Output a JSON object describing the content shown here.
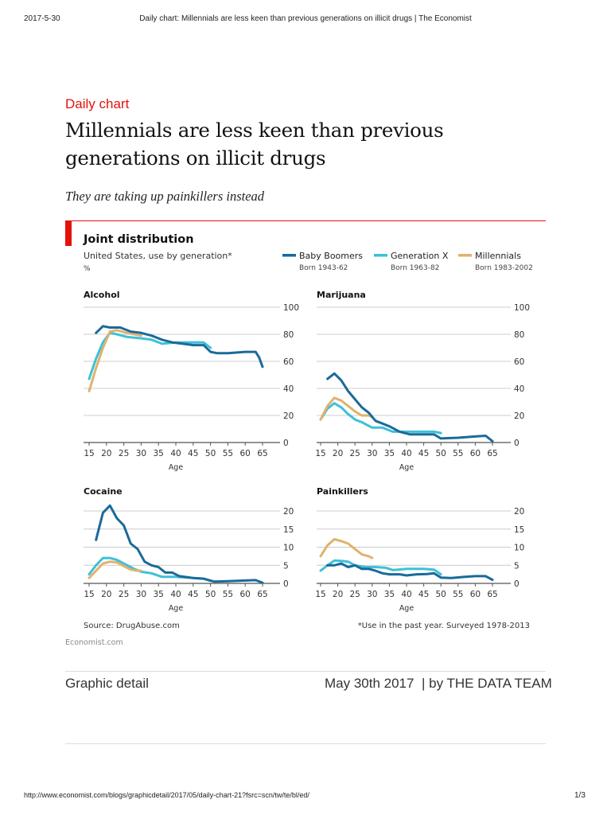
{
  "browser": {
    "date": "2017-5-30",
    "page_title": "Daily chart: Millennials are less keen than previous generations on illicit drugs | The Economist",
    "url": "http://www.economist.com/blogs/graphicdetail/2017/05/daily-chart-21?fsrc=scn/tw/te/bl/ed/",
    "page_number": "1/3"
  },
  "article": {
    "kicker": "Daily chart",
    "title": "Millennials are less keen than previous generations on illicit drugs",
    "subtitle": "They are taking up painkillers instead",
    "section": "Graphic detail",
    "date": "May 30th 2017",
    "byline": "| by THE DATA TEAM"
  },
  "figure": {
    "title": "Joint distribution",
    "subtitle": "United States, use by generation*",
    "unit": "%",
    "source": "Source: DrugAbuse.com",
    "note": "*Use in the past year. Surveyed 1978-2013",
    "brand": "Economist.com",
    "accent": "#e3120b",
    "legend": [
      {
        "name": "Baby Boomers",
        "sub": "Born 1943-62",
        "color": "#1a6a9a"
      },
      {
        "name": "Generation X",
        "sub": "Born 1963-82",
        "color": "#3fc0d8"
      },
      {
        "name": "Millennials",
        "sub": "Born 1983-2002",
        "color": "#e0b26e"
      }
    ]
  },
  "chart_data": [
    {
      "type": "line",
      "title": "Alcohol",
      "xlabel": "Age",
      "ylabel": "%",
      "xlim": [
        15,
        65
      ],
      "ylim": [
        0,
        100
      ],
      "xticks": [
        15,
        20,
        25,
        30,
        35,
        40,
        45,
        50,
        55,
        60,
        65
      ],
      "yticks": [
        0,
        20,
        40,
        60,
        80,
        100
      ],
      "grid": true,
      "series": [
        {
          "name": "Baby Boomers",
          "points": [
            [
              17,
              81
            ],
            [
              19,
              86
            ],
            [
              21,
              85
            ],
            [
              24,
              85
            ],
            [
              27,
              82
            ],
            [
              30,
              81
            ],
            [
              33,
              79
            ],
            [
              36,
              76
            ],
            [
              39,
              74
            ],
            [
              42,
              73
            ],
            [
              45,
              72
            ],
            [
              48,
              72
            ],
            [
              50,
              67
            ],
            [
              52,
              66
            ],
            [
              55,
              66
            ],
            [
              60,
              67
            ],
            [
              63,
              67
            ],
            [
              64,
              63
            ],
            [
              65,
              56
            ]
          ]
        },
        {
          "name": "Generation X",
          "points": [
            [
              15,
              47
            ],
            [
              17,
              62
            ],
            [
              19,
              74
            ],
            [
              21,
              81
            ],
            [
              23,
              80
            ],
            [
              26,
              78
            ],
            [
              30,
              77
            ],
            [
              33,
              76
            ],
            [
              36,
              73
            ],
            [
              40,
              74
            ],
            [
              45,
              74
            ],
            [
              48,
              74
            ],
            [
              50,
              70
            ]
          ]
        },
        {
          "name": "Millennials",
          "points": [
            [
              15,
              38
            ],
            [
              17,
              55
            ],
            [
              19,
              70
            ],
            [
              21,
              82
            ],
            [
              23,
              83
            ],
            [
              26,
              81
            ],
            [
              28,
              80
            ],
            [
              30,
              79
            ]
          ]
        }
      ]
    },
    {
      "type": "line",
      "title": "Marijuana",
      "xlabel": "Age",
      "ylabel": "%",
      "xlim": [
        15,
        65
      ],
      "ylim": [
        0,
        100
      ],
      "xticks": [
        15,
        20,
        25,
        30,
        35,
        40,
        45,
        50,
        55,
        60,
        65
      ],
      "yticks": [
        0,
        20,
        40,
        60,
        80,
        100
      ],
      "grid": true,
      "series": [
        {
          "name": "Baby Boomers",
          "points": [
            [
              17,
              47
            ],
            [
              19,
              51
            ],
            [
              21,
              46
            ],
            [
              23,
              38
            ],
            [
              25,
              32
            ],
            [
              27,
              26
            ],
            [
              29,
              22
            ],
            [
              31,
              16
            ],
            [
              33,
              14
            ],
            [
              35,
              12
            ],
            [
              38,
              8
            ],
            [
              41,
              6
            ],
            [
              45,
              6
            ],
            [
              48,
              6
            ],
            [
              50,
              3
            ],
            [
              55,
              3.5
            ],
            [
              60,
              4.5
            ],
            [
              63,
              5
            ],
            [
              65,
              1
            ]
          ]
        },
        {
          "name": "Generation X",
          "points": [
            [
              15,
              17
            ],
            [
              17,
              25
            ],
            [
              19,
              29
            ],
            [
              21,
              26
            ],
            [
              23,
              21
            ],
            [
              25,
              17
            ],
            [
              27,
              15
            ],
            [
              30,
              11
            ],
            [
              33,
              11
            ],
            [
              36,
              8
            ],
            [
              40,
              8
            ],
            [
              45,
              8
            ],
            [
              48,
              8
            ],
            [
              50,
              7
            ]
          ]
        },
        {
          "name": "Millennials",
          "points": [
            [
              15,
              17
            ],
            [
              17,
              27
            ],
            [
              19,
              33
            ],
            [
              21,
              31
            ],
            [
              23,
              27
            ],
            [
              25,
              23
            ],
            [
              27,
              20
            ],
            [
              29,
              20
            ],
            [
              30,
              19
            ]
          ]
        }
      ]
    },
    {
      "type": "line",
      "title": "Cocaine",
      "xlabel": "Age",
      "ylabel": "%",
      "xlim": [
        15,
        65
      ],
      "ylim": [
        0,
        20
      ],
      "xticks": [
        15,
        20,
        25,
        30,
        35,
        40,
        45,
        50,
        55,
        60,
        65
      ],
      "yticks": [
        0,
        5,
        10,
        15,
        20
      ],
      "grid": true,
      "series": [
        {
          "name": "Baby Boomers",
          "points": [
            [
              17,
              12
            ],
            [
              19,
              19.5
            ],
            [
              21,
              21.5
            ],
            [
              23,
              18
            ],
            [
              25,
              16
            ],
            [
              27,
              11
            ],
            [
              29,
              9.5
            ],
            [
              31,
              6
            ],
            [
              33,
              5
            ],
            [
              35,
              4.5
            ],
            [
              37,
              3
            ],
            [
              39,
              3
            ],
            [
              41,
              2
            ],
            [
              45,
              1.5
            ],
            [
              48,
              1.3
            ],
            [
              51,
              0.5
            ],
            [
              55,
              0.6
            ],
            [
              60,
              0.8
            ],
            [
              63,
              0.9
            ],
            [
              65,
              0.2
            ]
          ]
        },
        {
          "name": "Generation X",
          "points": [
            [
              15,
              2.5
            ],
            [
              17,
              5
            ],
            [
              19,
              7
            ],
            [
              21,
              7
            ],
            [
              23,
              6.5
            ],
            [
              25,
              5.5
            ],
            [
              28,
              4
            ],
            [
              30,
              3.2
            ],
            [
              33,
              2.8
            ],
            [
              36,
              1.8
            ],
            [
              40,
              1.8
            ],
            [
              45,
              1.5
            ],
            [
              48,
              1.3
            ],
            [
              50,
              0.7
            ]
          ]
        },
        {
          "name": "Millennials",
          "points": [
            [
              15,
              1.5
            ],
            [
              17,
              3.5
            ],
            [
              19,
              5.5
            ],
            [
              21,
              6
            ],
            [
              23,
              5.8
            ],
            [
              25,
              4.8
            ],
            [
              27,
              3.8
            ],
            [
              29,
              3.5
            ],
            [
              30,
              3.5
            ]
          ]
        }
      ]
    },
    {
      "type": "line",
      "title": "Painkillers",
      "xlabel": "Age",
      "ylabel": "%",
      "xlim": [
        15,
        65
      ],
      "ylim": [
        0,
        20
      ],
      "xticks": [
        15,
        20,
        25,
        30,
        35,
        40,
        45,
        50,
        55,
        60,
        65
      ],
      "yticks": [
        0,
        5,
        10,
        15,
        20
      ],
      "grid": true,
      "series": [
        {
          "name": "Baby Boomers",
          "points": [
            [
              17,
              5
            ],
            [
              19,
              5
            ],
            [
              21,
              5.5
            ],
            [
              23,
              4.5
            ],
            [
              25,
              5
            ],
            [
              27,
              4
            ],
            [
              29,
              4
            ],
            [
              31,
              3.5
            ],
            [
              33,
              2.8
            ],
            [
              35,
              2.5
            ],
            [
              38,
              2.5
            ],
            [
              40,
              2.2
            ],
            [
              43,
              2.5
            ],
            [
              46,
              2.6
            ],
            [
              48,
              2.8
            ],
            [
              50,
              1.6
            ],
            [
              53,
              1.5
            ],
            [
              57,
              1.8
            ],
            [
              60,
              2
            ],
            [
              63,
              2
            ],
            [
              65,
              1
            ]
          ]
        },
        {
          "name": "Generation X",
          "points": [
            [
              15,
              3.5
            ],
            [
              17,
              5
            ],
            [
              19,
              6.3
            ],
            [
              21,
              6.2
            ],
            [
              23,
              6
            ],
            [
              25,
              5
            ],
            [
              28,
              4.5
            ],
            [
              31,
              4.5
            ],
            [
              34,
              4.3
            ],
            [
              36,
              3.7
            ],
            [
              40,
              4
            ],
            [
              45,
              4
            ],
            [
              48,
              3.8
            ],
            [
              50,
              2.5
            ]
          ]
        },
        {
          "name": "Millennials",
          "points": [
            [
              15,
              7.5
            ],
            [
              17,
              10.5
            ],
            [
              19,
              12.2
            ],
            [
              21,
              11.7
            ],
            [
              23,
              11
            ],
            [
              25,
              9.5
            ],
            [
              27,
              8
            ],
            [
              29,
              7.5
            ],
            [
              30,
              7
            ]
          ]
        }
      ]
    }
  ]
}
